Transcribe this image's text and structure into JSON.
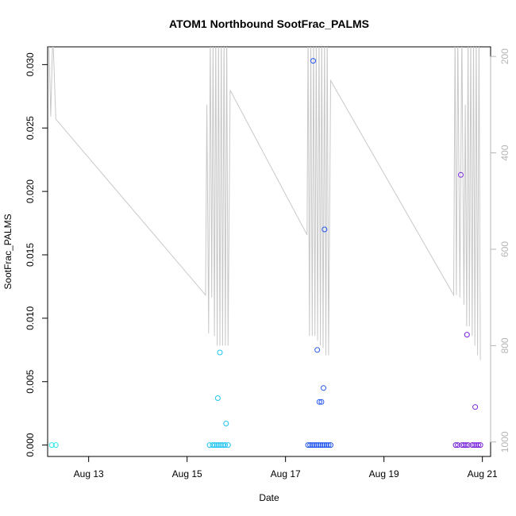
{
  "chart_data": {
    "type": "scatter",
    "title": "ATOM1 Northbound SootFrac_PALMS",
    "xlabel": "Date",
    "ylabel": "SootFrac_PALMS",
    "x_axis": {
      "type": "date",
      "ticks": [
        {
          "date": "2016-08-13",
          "label": "Aug 13"
        },
        {
          "date": "2016-08-15",
          "label": "Aug 15"
        },
        {
          "date": "2016-08-17",
          "label": "Aug 17"
        },
        {
          "date": "2016-08-19",
          "label": "Aug 19"
        },
        {
          "date": "2016-08-21",
          "label": "Aug 21"
        }
      ],
      "xlim": [
        "2016-08-12 04:00",
        "2016-08-21 04:00"
      ]
    },
    "y_axis": {
      "ticks": [
        {
          "value": 0.0,
          "label": "0.000"
        },
        {
          "value": 0.005,
          "label": "0.005"
        },
        {
          "value": 0.01,
          "label": "0.010"
        },
        {
          "value": 0.015,
          "label": "0.015"
        },
        {
          "value": 0.02,
          "label": "0.020"
        },
        {
          "value": 0.025,
          "label": "0.025"
        },
        {
          "value": 0.03,
          "label": "0.030"
        }
      ],
      "ylim": [
        -0.0009,
        0.0314
      ]
    },
    "y2_axis": {
      "reversed": true,
      "ticks": [
        {
          "value": 200,
          "label": "200"
        },
        {
          "value": 400,
          "label": "400"
        },
        {
          "value": 600,
          "label": "600"
        },
        {
          "value": 800,
          "label": "800"
        },
        {
          "value": 1000,
          "label": "1000"
        }
      ],
      "ylim": [
        1030,
        180
      ],
      "color": "#b5b5b5"
    },
    "grid": false,
    "series": [
      {
        "color": "#2ee6e6",
        "points": [
          [
            "2016-08-12 06:00",
            0.0
          ],
          [
            "2016-08-12 08:00",
            0.0
          ]
        ]
      },
      {
        "color": "#1ec4f2",
        "points": [
          [
            "2016-08-15 11:00",
            0.0
          ],
          [
            "2016-08-15 12:30",
            0.0
          ],
          [
            "2016-08-15 13:30",
            0.0
          ],
          [
            "2016-08-15 14:30",
            0.0
          ],
          [
            "2016-08-15 15:30",
            0.0
          ],
          [
            "2016-08-15 16:30",
            0.0
          ],
          [
            "2016-08-15 17:30",
            0.0
          ],
          [
            "2016-08-15 18:30",
            0.0
          ],
          [
            "2016-08-15 20:00",
            0.0
          ],
          [
            "2016-08-15 15:00",
            0.0037
          ],
          [
            "2016-08-15 16:00",
            0.0073
          ],
          [
            "2016-08-15 19:00",
            0.0017
          ]
        ]
      },
      {
        "color": "#2255ee",
        "points": [
          [
            "2016-08-17 11:00",
            0.0
          ],
          [
            "2016-08-17 12:00",
            0.0
          ],
          [
            "2016-08-17 13:00",
            0.0
          ],
          [
            "2016-08-17 14:00",
            0.0
          ],
          [
            "2016-08-17 15:00",
            0.0
          ],
          [
            "2016-08-17 16:00",
            0.0
          ],
          [
            "2016-08-17 17:00",
            0.0
          ],
          [
            "2016-08-17 18:00",
            0.0
          ],
          [
            "2016-08-17 19:00",
            0.0
          ],
          [
            "2016-08-17 20:00",
            0.0
          ],
          [
            "2016-08-17 21:00",
            0.0
          ],
          [
            "2016-08-17 22:00",
            0.0
          ],
          [
            "2016-08-17 13:30",
            0.0303
          ],
          [
            "2016-08-17 15:30",
            0.0075
          ],
          [
            "2016-08-17 16:30",
            0.0034
          ],
          [
            "2016-08-17 17:30",
            0.0034
          ],
          [
            "2016-08-17 18:30",
            0.0045
          ],
          [
            "2016-08-17 19:00",
            0.017
          ]
        ]
      },
      {
        "color": "#7722dd",
        "points": [
          [
            "2016-08-20 11:00",
            0.0
          ],
          [
            "2016-08-20 12:00",
            0.0
          ],
          [
            "2016-08-20 14:00",
            0.0
          ],
          [
            "2016-08-20 15:00",
            0.0
          ],
          [
            "2016-08-20 16:00",
            0.0
          ],
          [
            "2016-08-20 17:00",
            0.0
          ],
          [
            "2016-08-20 19:00",
            0.0
          ],
          [
            "2016-08-20 20:00",
            0.0
          ],
          [
            "2016-08-20 21:00",
            0.0
          ],
          [
            "2016-08-20 22:00",
            0.0
          ],
          [
            "2016-08-20 23:00",
            0.0
          ],
          [
            "2016-08-20 13:30",
            0.0213
          ],
          [
            "2016-08-20 16:30",
            0.0087
          ],
          [
            "2016-08-20 20:30",
            0.003
          ]
        ]
      }
    ],
    "secondary_line": {
      "color": "#c8c8c8",
      "axis": "y2",
      "points": [
        [
          "2016-08-12 04:30",
          150
        ],
        [
          "2016-08-12 05:30",
          325
        ],
        [
          "2016-08-12 06:30",
          150
        ],
        [
          "2016-08-12 08:00",
          330
        ],
        [
          "2016-08-15 09:00",
          695
        ],
        [
          "2016-08-15 09:40",
          300
        ],
        [
          "2016-08-15 10:30",
          775
        ],
        [
          "2016-08-15 11:20",
          150
        ],
        [
          "2016-08-15 12:00",
          700
        ],
        [
          "2016-08-15 12:40",
          150
        ],
        [
          "2016-08-15 13:20",
          780
        ],
        [
          "2016-08-15 14:00",
          150
        ],
        [
          "2016-08-15 14:40",
          800
        ],
        [
          "2016-08-15 15:20",
          150
        ],
        [
          "2016-08-15 16:00",
          800
        ],
        [
          "2016-08-15 16:40",
          150
        ],
        [
          "2016-08-15 17:20",
          800
        ],
        [
          "2016-08-15 18:00",
          150
        ],
        [
          "2016-08-15 18:40",
          800
        ],
        [
          "2016-08-15 19:20",
          150
        ],
        [
          "2016-08-15 20:00",
          800
        ],
        [
          "2016-08-15 21:00",
          270
        ],
        [
          "2016-08-17 10:30",
          570
        ],
        [
          "2016-08-17 11:00",
          150
        ],
        [
          "2016-08-17 11:40",
          780
        ],
        [
          "2016-08-17 12:20",
          150
        ],
        [
          "2016-08-17 13:00",
          780
        ],
        [
          "2016-08-17 13:40",
          150
        ],
        [
          "2016-08-17 14:20",
          780
        ],
        [
          "2016-08-17 15:00",
          150
        ],
        [
          "2016-08-17 15:40",
          790
        ],
        [
          "2016-08-17 16:20",
          150
        ],
        [
          "2016-08-17 17:00",
          800
        ],
        [
          "2016-08-17 17:40",
          150
        ],
        [
          "2016-08-17 18:20",
          805
        ],
        [
          "2016-08-17 19:00",
          150
        ],
        [
          "2016-08-17 19:40",
          820
        ],
        [
          "2016-08-17 20:20",
          150
        ],
        [
          "2016-08-17 21:00",
          820
        ],
        [
          "2016-08-17 22:00",
          250
        ],
        [
          "2016-08-20 10:00",
          695
        ],
        [
          "2016-08-20 10:40",
          150
        ],
        [
          "2016-08-20 11:20",
          695
        ],
        [
          "2016-08-20 12:00",
          150
        ],
        [
          "2016-08-20 13:00",
          700
        ],
        [
          "2016-08-20 14:00",
          150
        ],
        [
          "2016-08-20 15:00",
          715
        ],
        [
          "2016-08-20 15:40",
          300
        ],
        [
          "2016-08-20 16:20",
          760
        ],
        [
          "2016-08-20 17:00",
          150
        ],
        [
          "2016-08-20 17:40",
          760
        ],
        [
          "2016-08-20 18:20",
          150
        ],
        [
          "2016-08-20 19:00",
          780
        ],
        [
          "2016-08-20 19:40",
          150
        ],
        [
          "2016-08-20 20:20",
          800
        ],
        [
          "2016-08-20 21:00",
          150
        ],
        [
          "2016-08-20 21:40",
          820
        ],
        [
          "2016-08-20 22:20",
          150
        ],
        [
          "2016-08-20 23:00",
          830
        ]
      ]
    }
  }
}
